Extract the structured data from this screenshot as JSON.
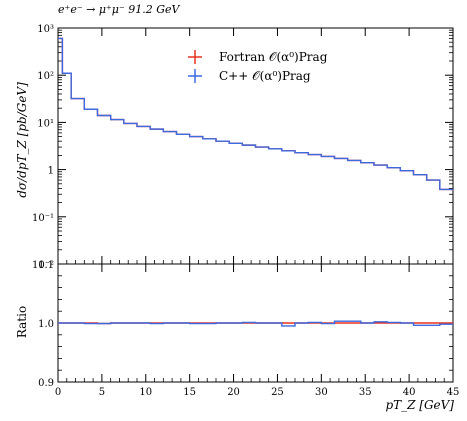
{
  "title": "e⁺e⁻ → μ⁺μ⁻ 91.2 GeV",
  "colors": {
    "fortran": "#e8321e",
    "cpp": "#3c68e0"
  },
  "chart_data": [
    {
      "type": "histogram",
      "panel": "main",
      "ylabel": "dσ/dpT_Z [pb/GeV]",
      "yscale": "log",
      "ylim": [
        0.01,
        1000
      ],
      "xlim": [
        0,
        45
      ],
      "y_tick_labels": [
        "10⁻²",
        "10⁻¹",
        "1",
        "10¹",
        "10²",
        "10³"
      ],
      "legend_placement": "top-center",
      "bin_edges": [
        0,
        0.5,
        1.5,
        3,
        4.5,
        6,
        7.5,
        9,
        10.5,
        12,
        13.5,
        15,
        16.5,
        18,
        19.5,
        21,
        22.5,
        24,
        25.5,
        27,
        28.5,
        30,
        31.5,
        33,
        34.5,
        36,
        37.5,
        39,
        40.5,
        42,
        43.5,
        45
      ],
      "series": [
        {
          "name": "Fortran 𝒪(α⁰)Prag",
          "color": "#e8321e",
          "values": [
            600,
            110,
            32,
            19,
            14,
            11.5,
            9.5,
            8.2,
            7.2,
            6.4,
            5.6,
            5.0,
            4.5,
            4.0,
            3.6,
            3.3,
            3.0,
            2.75,
            2.5,
            2.28,
            2.08,
            1.9,
            1.72,
            1.56,
            1.4,
            1.25,
            1.1,
            0.95,
            0.78,
            0.6,
            0.38
          ]
        },
        {
          "name": "C++ 𝒪(α⁰)Prag",
          "color": "#3c68e0",
          "values": [
            600,
            110,
            32,
            19,
            14,
            11.5,
            9.5,
            8.2,
            7.2,
            6.4,
            5.6,
            5.0,
            4.5,
            4.0,
            3.6,
            3.3,
            3.0,
            2.75,
            2.5,
            2.28,
            2.08,
            1.9,
            1.72,
            1.56,
            1.4,
            1.25,
            1.1,
            0.95,
            0.78,
            0.6,
            0.38
          ]
        }
      ]
    },
    {
      "type": "histogram",
      "panel": "ratio",
      "ylabel": "Ratio",
      "ylim": [
        0.9,
        1.1
      ],
      "xlim": [
        0,
        45
      ],
      "xlabel": "pT_Z [GeV]",
      "x_ticks": [
        0,
        5,
        10,
        15,
        20,
        25,
        30,
        35,
        40,
        45
      ],
      "y_ticks": [
        "0.9",
        "1.0",
        "1.1"
      ],
      "bin_edges": [
        0,
        0.5,
        1.5,
        3,
        4.5,
        6,
        7.5,
        9,
        10.5,
        12,
        13.5,
        15,
        16.5,
        18,
        19.5,
        21,
        22.5,
        24,
        25.5,
        27,
        28.5,
        30,
        31.5,
        33,
        34.5,
        36,
        37.5,
        39,
        40.5,
        42,
        43.5,
        45
      ],
      "series": [
        {
          "name": "Fortran 𝒪(α⁰)Prag",
          "color": "#e8321e",
          "values": [
            1,
            1,
            1,
            1,
            0.999,
            1,
            1,
            1,
            1,
            1,
            1,
            1,
            1,
            1,
            1,
            1,
            1,
            1,
            1,
            1,
            1,
            1,
            1,
            1,
            1,
            1,
            1,
            1,
            1,
            1,
            1
          ]
        },
        {
          "name": "C++ 𝒪(α⁰)Prag",
          "color": "#3c68e0",
          "values": [
            1,
            1,
            1,
            0.999,
            0.999,
            1,
            1,
            1,
            0.999,
            1,
            1,
            0.999,
            0.999,
            1,
            1,
            1.001,
            1,
            1,
            0.995,
            1,
            1.001,
            0.999,
            1.003,
            1.003,
            1,
            1.002,
            1.001,
            1,
            0.996,
            0.996,
            0.998
          ]
        }
      ]
    }
  ]
}
